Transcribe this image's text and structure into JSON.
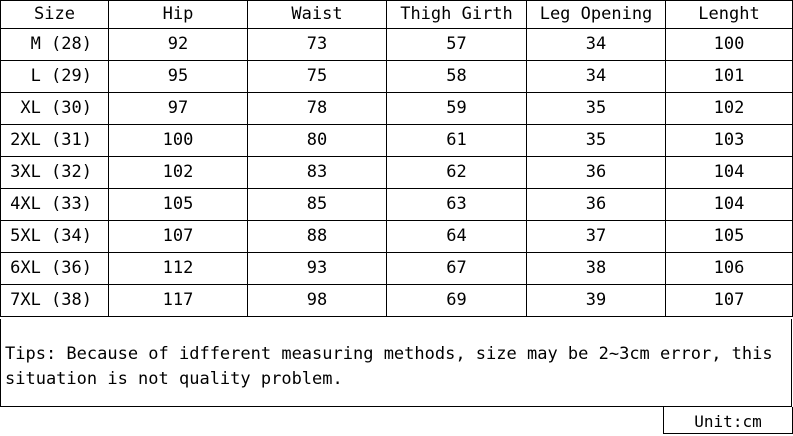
{
  "chart_data": {
    "type": "table",
    "columns": [
      "Size",
      "Hip",
      "Waist",
      "Thigh Girth",
      "Leg Opening",
      "Lenght"
    ],
    "rows": [
      [
        "M (28)",
        "92",
        "73",
        "57",
        "34",
        "100"
      ],
      [
        "L (29)",
        "95",
        "75",
        "58",
        "34",
        "101"
      ],
      [
        "XL (30)",
        "97",
        "78",
        "59",
        "35",
        "102"
      ],
      [
        "2XL (31)",
        "100",
        "80",
        "61",
        "35",
        "103"
      ],
      [
        "3XL (32)",
        "102",
        "83",
        "62",
        "36",
        "104"
      ],
      [
        "4XL (33)",
        "105",
        "85",
        "63",
        "36",
        "104"
      ],
      [
        "5XL (34)",
        "107",
        "88",
        "64",
        "37",
        "105"
      ],
      [
        "6XL (36)",
        "112",
        "93",
        "67",
        "38",
        "106"
      ],
      [
        "7XL (38)",
        "117",
        "98",
        "69",
        "39",
        "107"
      ]
    ]
  },
  "tips": "Tips: Because of idfferent measuring methods, size may be 2~3cm error, this\nsituation is not quality problem.",
  "unit": "Unit:cm"
}
